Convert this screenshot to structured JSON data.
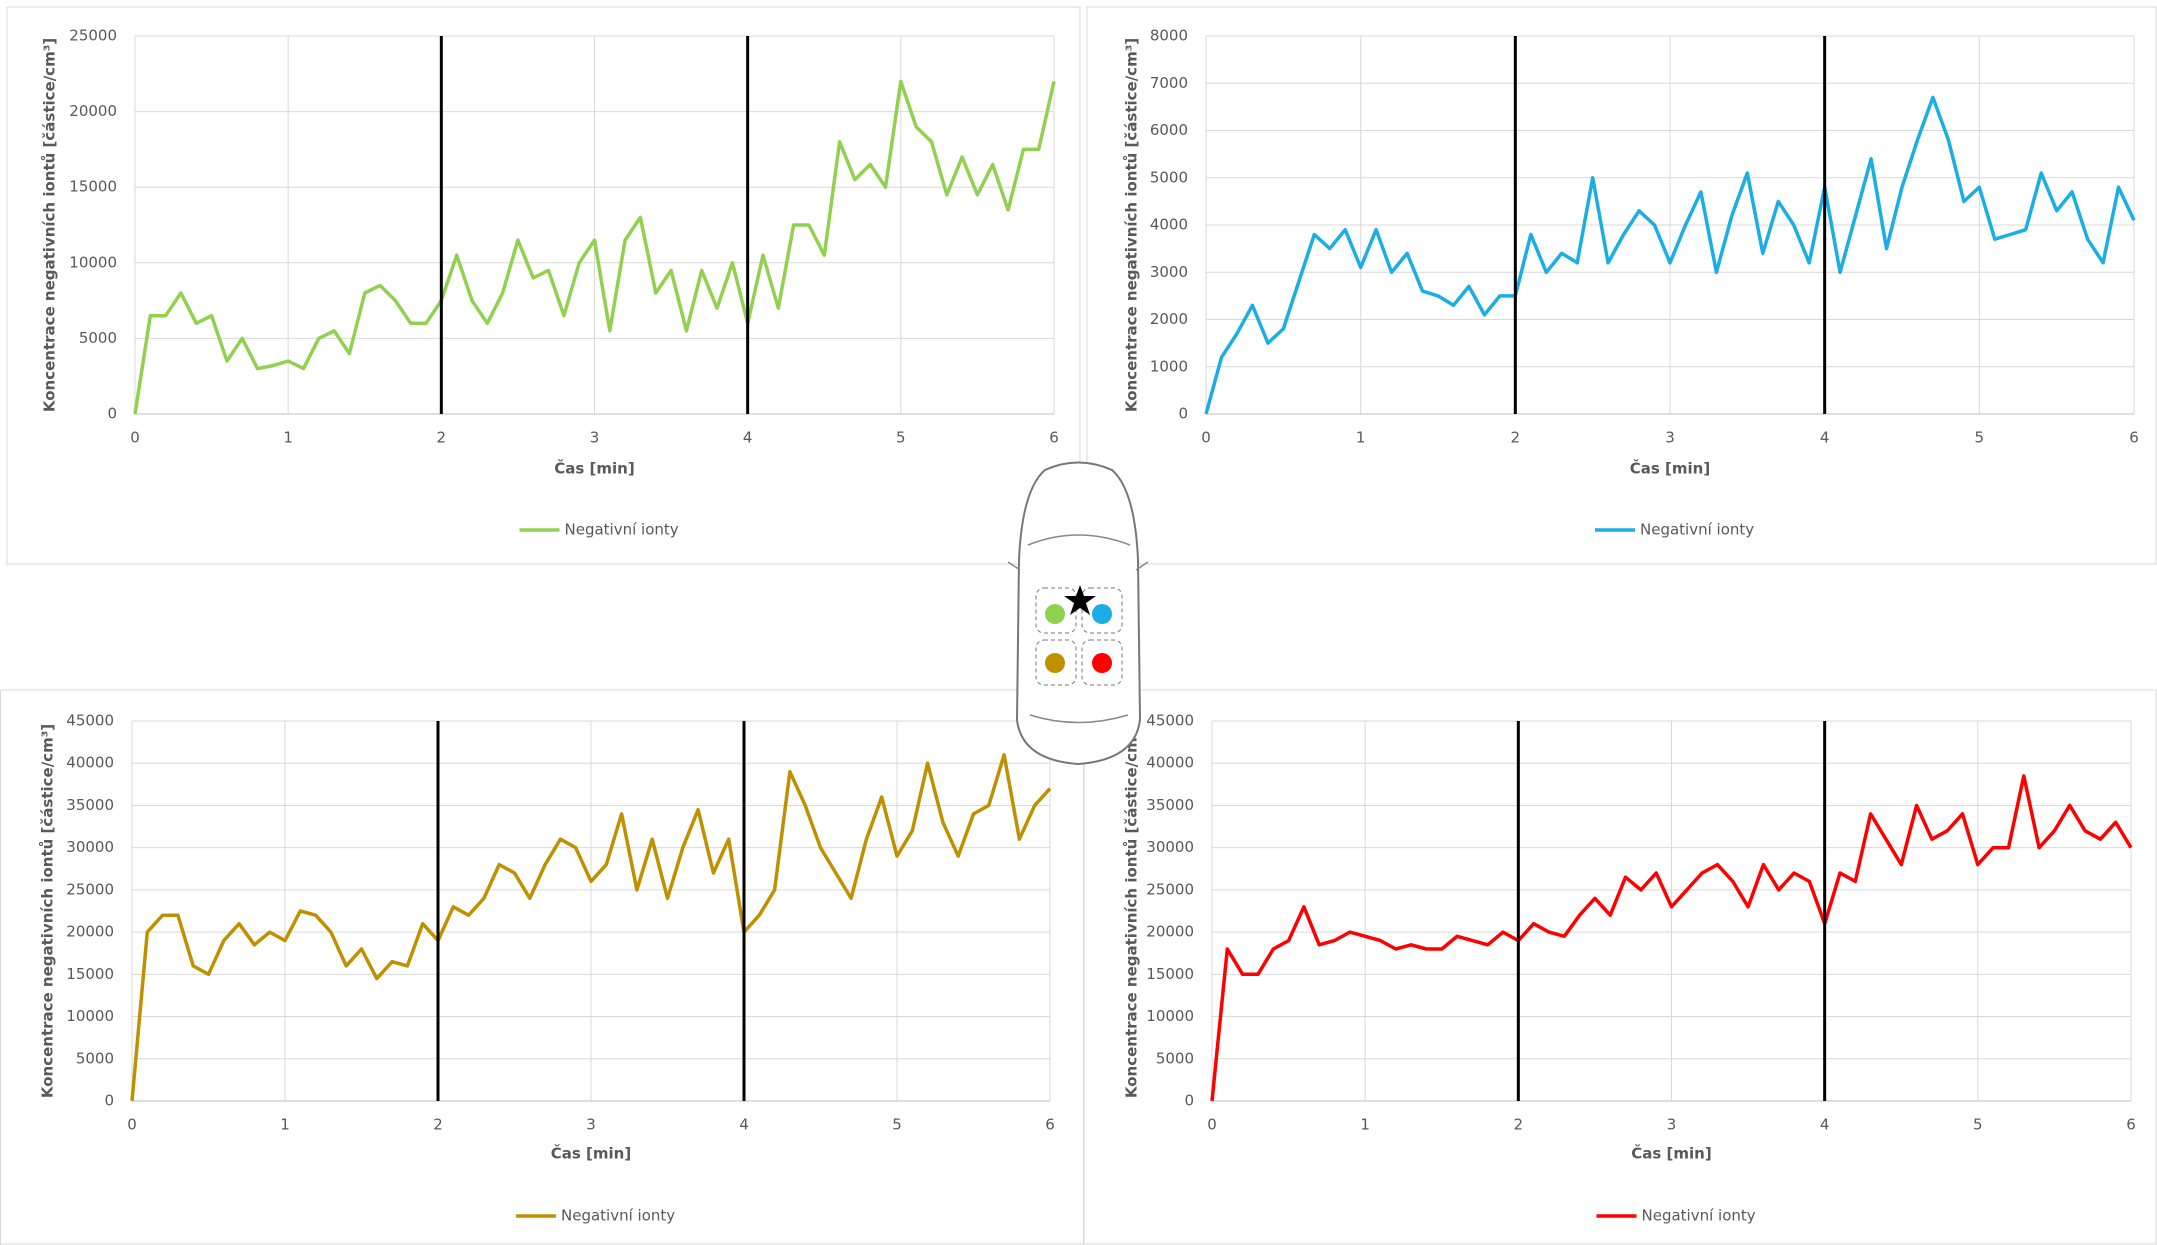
{
  "chart_data": [
    {
      "type": "line",
      "xlabel": "Čas [min]",
      "ylabel": "Koncentrace negativních iontů [částice/cm³]",
      "x": [
        0,
        0.1,
        0.2,
        0.3,
        0.4,
        0.5,
        0.6,
        0.7,
        0.8,
        0.9,
        1,
        1.1,
        1.2,
        1.3,
        1.4,
        1.5,
        1.6,
        1.7,
        1.8,
        1.9,
        2,
        2.1,
        2.2,
        2.3,
        2.4,
        2.5,
        2.6,
        2.7,
        2.8,
        2.9,
        3,
        3.1,
        3.2,
        3.3,
        3.4,
        3.5,
        3.6,
        3.7,
        3.8,
        3.9,
        4,
        4.1,
        4.2,
        4.3,
        4.4,
        4.5,
        4.6,
        4.7,
        4.8,
        4.9,
        5,
        5.1,
        5.2,
        5.3,
        5.4,
        5.5,
        5.6,
        5.7,
        5.8,
        5.9,
        6
      ],
      "series": [
        {
          "name": "Negativní ionty",
          "color": "#92d050",
          "values": [
            0,
            6500,
            6500,
            8000,
            6000,
            6500,
            3500,
            5000,
            3000,
            3200,
            3500,
            3000,
            5000,
            5500,
            4000,
            8000,
            8500,
            7500,
            6000,
            6000,
            7500,
            10500,
            7500,
            6000,
            8000,
            11500,
            9000,
            9500,
            6500,
            10000,
            11500,
            5500,
            11500,
            13000,
            8000,
            9500,
            5500,
            9500,
            7000,
            10000,
            6000,
            10500,
            7000,
            12500,
            12500,
            10500,
            18000,
            15500,
            16500,
            15000,
            22000,
            19000,
            18000,
            14500,
            17000,
            14500,
            16500,
            13500,
            17500,
            17500,
            22000
          ]
        }
      ],
      "xlim": [
        0,
        6
      ],
      "xticks": [
        0,
        1,
        2,
        3,
        4,
        5,
        6
      ],
      "ylim": [
        0,
        25000
      ],
      "yticks": [
        0,
        5000,
        10000,
        15000,
        20000,
        25000
      ],
      "vlines": [
        2,
        4
      ],
      "grid": true
    },
    {
      "type": "line",
      "xlabel": "Čas [min]",
      "ylabel": "Koncentrace negativních iontů [částice/cm³]",
      "x": [
        0,
        0.1,
        0.2,
        0.3,
        0.4,
        0.5,
        0.6,
        0.7,
        0.8,
        0.9,
        1,
        1.1,
        1.2,
        1.3,
        1.4,
        1.5,
        1.6,
        1.7,
        1.8,
        1.9,
        2,
        2.1,
        2.2,
        2.3,
        2.4,
        2.5,
        2.6,
        2.7,
        2.8,
        2.9,
        3,
        3.1,
        3.2,
        3.3,
        3.4,
        3.5,
        3.6,
        3.7,
        3.8,
        3.9,
        4,
        4.1,
        4.2,
        4.3,
        4.4,
        4.5,
        4.6,
        4.7,
        4.8,
        4.9,
        5,
        5.1,
        5.2,
        5.3,
        5.4,
        5.5,
        5.6,
        5.7,
        5.8,
        5.9,
        6
      ],
      "series": [
        {
          "name": "Negativní ionty",
          "color": "#1aaee5",
          "values": [
            0,
            1200,
            1700,
            2300,
            1500,
            1800,
            2800,
            3800,
            3500,
            3900,
            3100,
            3900,
            3000,
            3400,
            2600,
            2500,
            2300,
            2700,
            2100,
            2500,
            2500,
            3800,
            3000,
            3400,
            3200,
            5000,
            3200,
            3800,
            4300,
            4000,
            3200,
            4000,
            4700,
            3000,
            4200,
            5100,
            3400,
            4500,
            4000,
            3200,
            4800,
            3000,
            4200,
            5400,
            3500,
            4800,
            5800,
            6700,
            5800,
            4500,
            4800,
            3700,
            3800,
            3900,
            5100,
            4300,
            4700,
            3700,
            3200,
            4800,
            4100
          ]
        }
      ],
      "xlim": [
        0,
        6
      ],
      "xticks": [
        0,
        1,
        2,
        3,
        4,
        5,
        6
      ],
      "ylim": [
        0,
        8000
      ],
      "yticks": [
        0,
        1000,
        2000,
        3000,
        4000,
        5000,
        6000,
        7000,
        8000
      ],
      "vlines": [
        2,
        4
      ],
      "grid": true
    },
    {
      "type": "line",
      "xlabel": "Čas [min]",
      "ylabel": "Koncentrace negativních iontů [částice/cm³]",
      "x": [
        0,
        0.1,
        0.2,
        0.3,
        0.4,
        0.5,
        0.6,
        0.7,
        0.8,
        0.9,
        1,
        1.1,
        1.2,
        1.3,
        1.4,
        1.5,
        1.6,
        1.7,
        1.8,
        1.9,
        2,
        2.1,
        2.2,
        2.3,
        2.4,
        2.5,
        2.6,
        2.7,
        2.8,
        2.9,
        3,
        3.1,
        3.2,
        3.3,
        3.4,
        3.5,
        3.6,
        3.7,
        3.8,
        3.9,
        4,
        4.1,
        4.2,
        4.3,
        4.4,
        4.5,
        4.6,
        4.7,
        4.8,
        4.9,
        5,
        5.1,
        5.2,
        5.3,
        5.4,
        5.5,
        5.6,
        5.7,
        5.8,
        5.9,
        6
      ],
      "series": [
        {
          "name": "Negativní ionty",
          "color": "#bf9000",
          "values": [
            0,
            20000,
            22000,
            22000,
            16000,
            15000,
            19000,
            21000,
            18500,
            20000,
            19000,
            22500,
            22000,
            20000,
            16000,
            18000,
            14500,
            16500,
            16000,
            21000,
            19000,
            23000,
            22000,
            24000,
            28000,
            27000,
            24000,
            28000,
            31000,
            30000,
            26000,
            28000,
            34000,
            25000,
            31000,
            24000,
            30000,
            34500,
            27000,
            31000,
            20000,
            22000,
            25000,
            39000,
            35000,
            30000,
            27000,
            24000,
            31000,
            36000,
            29000,
            32000,
            40000,
            33000,
            29000,
            34000,
            35000,
            41000,
            31000,
            35000,
            37000
          ]
        }
      ],
      "xlim": [
        0,
        6
      ],
      "xticks": [
        0,
        1,
        2,
        3,
        4,
        5,
        6
      ],
      "ylim": [
        0,
        45000
      ],
      "yticks": [
        0,
        5000,
        10000,
        15000,
        20000,
        25000,
        30000,
        35000,
        40000,
        45000
      ],
      "vlines": [
        2,
        4
      ],
      "grid": true
    },
    {
      "type": "line",
      "xlabel": "Čas [min]",
      "ylabel": "Koncentrace negativních iontů [částice/cm³]",
      "x": [
        0,
        0.1,
        0.2,
        0.3,
        0.4,
        0.5,
        0.6,
        0.7,
        0.8,
        0.9,
        1,
        1.1,
        1.2,
        1.3,
        1.4,
        1.5,
        1.6,
        1.7,
        1.8,
        1.9,
        2,
        2.1,
        2.2,
        2.3,
        2.4,
        2.5,
        2.6,
        2.7,
        2.8,
        2.9,
        3,
        3.1,
        3.2,
        3.3,
        3.4,
        3.5,
        3.6,
        3.7,
        3.8,
        3.9,
        4,
        4.1,
        4.2,
        4.3,
        4.4,
        4.5,
        4.6,
        4.7,
        4.8,
        4.9,
        5,
        5.1,
        5.2,
        5.3,
        5.4,
        5.5,
        5.6,
        5.7,
        5.8,
        5.9,
        6
      ],
      "series": [
        {
          "name": "Negativní ionty",
          "color": "#ff0000",
          "values": [
            0,
            18000,
            15000,
            15000,
            18000,
            19000,
            23000,
            18500,
            19000,
            20000,
            19500,
            19000,
            18000,
            18500,
            18000,
            18000,
            19500,
            19000,
            18500,
            20000,
            19000,
            21000,
            20000,
            19500,
            22000,
            24000,
            22000,
            26500,
            25000,
            27000,
            23000,
            25000,
            27000,
            28000,
            26000,
            23000,
            28000,
            25000,
            27000,
            26000,
            21000,
            27000,
            26000,
            34000,
            31000,
            28000,
            35000,
            31000,
            32000,
            34000,
            28000,
            30000,
            30000,
            38500,
            30000,
            32000,
            35000,
            32000,
            31000,
            33000,
            30000
          ]
        }
      ],
      "xlim": [
        0,
        6
      ],
      "xticks": [
        0,
        1,
        2,
        3,
        4,
        5,
        6
      ],
      "ylim": [
        0,
        45000
      ],
      "yticks": [
        0,
        5000,
        10000,
        15000,
        20000,
        25000,
        30000,
        35000,
        40000,
        45000
      ],
      "vlines": [
        2,
        4
      ],
      "grid": true
    }
  ]
}
